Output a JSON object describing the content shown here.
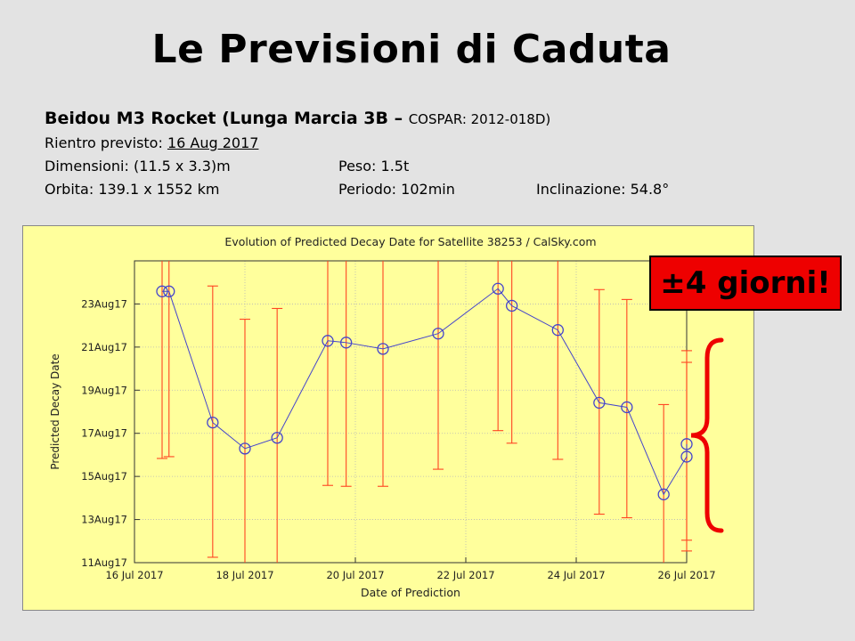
{
  "slide": {
    "title": "Le Previsioni di Caduta",
    "object_name": "Beidou M3 Rocket (Lunga Marcia 3B – ",
    "cospar": "COSPAR: 2012-018D)",
    "reentry_label": "Rientro previsto: ",
    "reentry_date": "16 Aug 2017",
    "dimensions": "Dimensioni: (11.5 x 3.3)m",
    "mass": "Peso: 1.5t",
    "orbit": "Orbita: 139.1 x 1552 km",
    "period": "Periodo: 102min",
    "inclination": "Inclinazione: 54.8°",
    "callout": "±4 giorni!"
  },
  "colors": {
    "chart_bg": "#ffff9c",
    "line": "#4444cc",
    "errorbar": "#ff4422",
    "callout_bg": "#ee0000",
    "brace": "#ee0000"
  },
  "chart_data": {
    "type": "scatter",
    "title": "Evolution of Predicted Decay Date for Satellite 38253 / CalSky.com",
    "xlabel": "Date of Prediction",
    "ylabel": "Predicted Decay Date",
    "x_ticks": [
      "16 Jul 2017",
      "18 Jul 2017",
      "20 Jul 2017",
      "22 Jul 2017",
      "24 Jul 2017",
      "26 Jul 2017"
    ],
    "y_ticks": [
      "11Aug17",
      "13Aug17",
      "15Aug17",
      "17Aug17",
      "19Aug17",
      "21Aug17",
      "23Aug17"
    ],
    "xlim": [
      "2017-07-16",
      "2017-07-26"
    ],
    "ylim": [
      "2017-08-11",
      "2017-08-25"
    ],
    "grid": true,
    "points": [
      {
        "x": "2017-07-16 12:00",
        "y": "2017-08-23 14:00",
        "err_low": "2017-08-15 20:00",
        "err_high": "2017-08-25 00:00"
      },
      {
        "x": "2017-07-16 15:00",
        "y": "2017-08-23 14:00",
        "err_low": "2017-08-15 22:00",
        "err_high": "2017-08-25 00:00"
      },
      {
        "x": "2017-07-17 10:00",
        "y": "2017-08-17 12:00",
        "err_low": "2017-08-11 06:00",
        "err_high": "2017-08-23 20:00"
      },
      {
        "x": "2017-07-18 00:00",
        "y": "2017-08-16 07:00",
        "err_low": "2017-08-10 22:00",
        "err_high": "2017-08-22 07:00"
      },
      {
        "x": "2017-07-18 14:00",
        "y": "2017-08-16 19:00",
        "err_low": "2017-08-10 20:00",
        "err_high": "2017-08-22 19:00"
      },
      {
        "x": "2017-07-19 12:00",
        "y": "2017-08-21 07:00",
        "err_low": "2017-08-14 14:00",
        "err_high": "2017-08-25 00:00"
      },
      {
        "x": "2017-07-19 20:00",
        "y": "2017-08-21 05:00",
        "err_low": "2017-08-14 13:00",
        "err_high": "2017-08-25 00:00"
      },
      {
        "x": "2017-07-20 12:00",
        "y": "2017-08-20 22:00",
        "err_low": "2017-08-14 13:00",
        "err_high": "2017-08-25 00:00"
      },
      {
        "x": "2017-07-21 12:00",
        "y": "2017-08-21 15:00",
        "err_low": "2017-08-15 08:00",
        "err_high": "2017-08-25 00:00"
      },
      {
        "x": "2017-07-22 14:00",
        "y": "2017-08-23 17:00",
        "err_low": "2017-08-17 03:00",
        "err_high": "2017-08-25 00:00"
      },
      {
        "x": "2017-07-22 20:00",
        "y": "2017-08-22 22:00",
        "err_low": "2017-08-16 13:00",
        "err_high": "2017-08-25 00:00"
      },
      {
        "x": "2017-07-23 16:00",
        "y": "2017-08-21 19:00",
        "err_low": "2017-08-15 19:00",
        "err_high": "2017-08-25 00:00"
      },
      {
        "x": "2017-07-24 10:00",
        "y": "2017-08-18 10:00",
        "err_low": "2017-08-13 06:00",
        "err_high": "2017-08-23 16:00"
      },
      {
        "x": "2017-07-24 22:00",
        "y": "2017-08-18 05:00",
        "err_low": "2017-08-13 02:00",
        "err_high": "2017-08-23 05:00"
      },
      {
        "x": "2017-07-25 14:00",
        "y": "2017-08-14 04:00",
        "err_low": "2017-08-10 20:00",
        "err_high": "2017-08-18 08:00"
      },
      {
        "x": "2017-07-26 12:00",
        "y": "2017-08-15 22:00",
        "err_low": "2017-08-11 13:00",
        "err_high": "2017-08-20 07:00"
      },
      {
        "x": "2017-07-26 23:00",
        "y": "2017-08-16 12:00",
        "err_low": "2017-08-12 01:00",
        "err_high": "2017-08-20 20:00"
      }
    ]
  }
}
